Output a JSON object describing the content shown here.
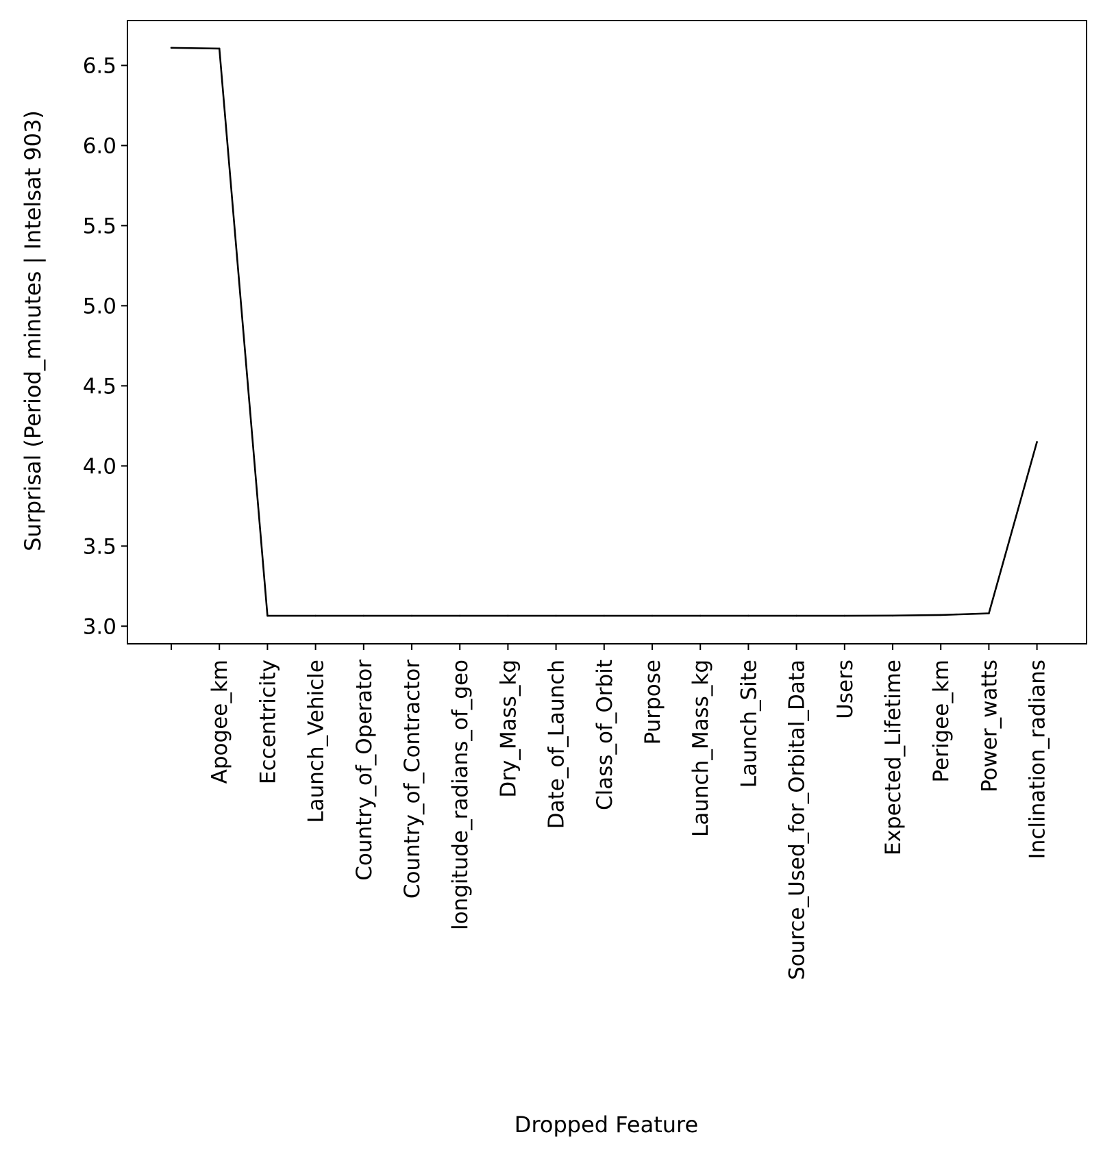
{
  "chart_data": {
    "type": "line",
    "title": "",
    "xlabel": "Dropped Feature",
    "ylabel": "Surprisal (Period_minutes | Intelsat 903)",
    "categories": [
      "",
      "Apogee_km",
      "Eccentricity",
      "Launch_Vehicle",
      "Country_of_Operator",
      "Country_of_Contractor",
      "longitude_radians_of_geo",
      "Dry_Mass_kg",
      "Date_of_Launch",
      "Class_of_Orbit",
      "Purpose",
      "Launch_Mass_kg",
      "Launch_Site",
      "Source_Used_for_Orbital_Data",
      "Users",
      "Expected_Lifetime",
      "Perigee_km",
      "Power_watts",
      "Inclination_radians"
    ],
    "values": [
      6.61,
      6.605,
      3.065,
      3.065,
      3.065,
      3.065,
      3.065,
      3.065,
      3.065,
      3.065,
      3.065,
      3.065,
      3.065,
      3.065,
      3.065,
      3.066,
      3.07,
      3.08,
      4.15
    ],
    "ylim": [
      2.89,
      6.78
    ],
    "yticks": [
      3.0,
      3.5,
      4.0,
      4.5,
      5.0,
      5.5,
      6.0,
      6.5
    ],
    "line_color": "#000000",
    "grid": false,
    "legend": false
  }
}
